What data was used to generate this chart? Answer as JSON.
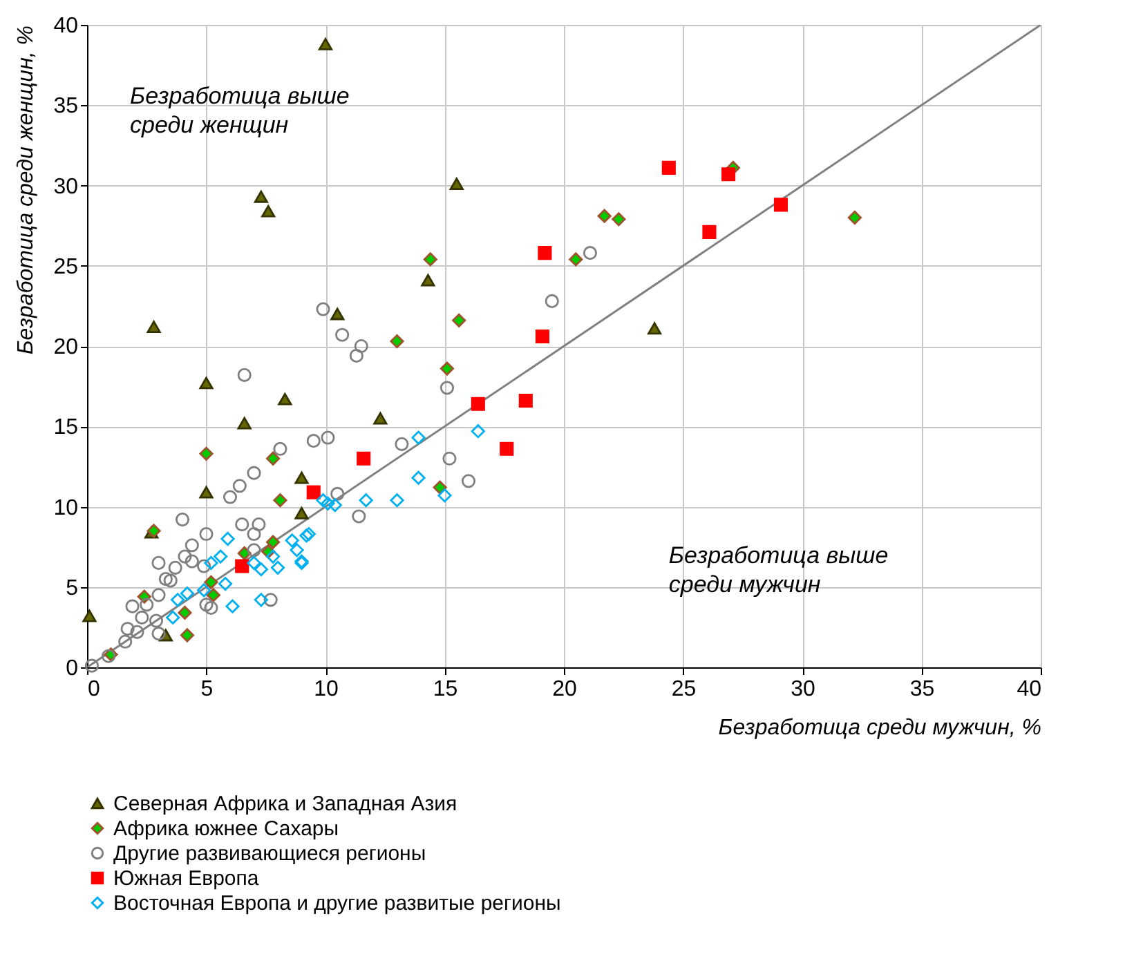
{
  "chart_data": {
    "type": "scatter",
    "xlabel": "Безработица среди мужчин, %",
    "ylabel": "Безработица среди женщин, %",
    "xlim": [
      0,
      40
    ],
    "ylim": [
      0,
      40
    ],
    "xticks": [
      0,
      5,
      10,
      15,
      20,
      25,
      30,
      35,
      40
    ],
    "yticks": [
      0,
      5,
      10,
      15,
      20,
      25,
      30,
      35,
      40
    ],
    "grid": true,
    "legend": "bottom left",
    "annotations": [
      "Безработица выше среди женщин",
      "Безработица выше среди мужчин"
    ],
    "series": [
      {
        "name": "Северная Африка и Западная Азия",
        "color": "#666600",
        "marker": "triangle",
        "x": [
          0.1,
          2.8,
          2.7,
          5.0,
          5.0,
          6.6,
          7.3,
          7.6,
          8.3,
          9.0,
          9.0,
          10.0,
          10.5,
          12.3,
          14.3,
          15.5,
          23.8,
          3.3
        ],
        "values": [
          3.2,
          21.2,
          8.4,
          17.7,
          10.9,
          15.2,
          29.3,
          28.4,
          16.7,
          11.8,
          9.6,
          38.8,
          22.0,
          15.5,
          24.1,
          30.1,
          21.1,
          2.0
        ]
      },
      {
        "name": "Африка южнее Сахары",
        "color": "#00cc00",
        "marker": "diamond",
        "x": [
          21.7,
          22.3,
          20.5,
          27.1,
          32.2,
          15.6,
          14.4,
          13.0,
          15.1,
          5.0,
          7.8,
          8.1,
          14.8,
          2.8,
          7.8,
          6.6,
          7.6,
          5.2,
          2.4,
          4.1,
          4.2,
          5.3,
          1.0
        ],
        "values": [
          28.1,
          27.9,
          25.4,
          31.1,
          28.0,
          21.6,
          25.4,
          20.3,
          18.6,
          13.3,
          13.0,
          10.4,
          11.2,
          8.5,
          7.8,
          7.1,
          7.2,
          5.3,
          4.4,
          3.4,
          2.0,
          4.5,
          0.8
        ]
      },
      {
        "name": "Другие развивающиеся регионы",
        "color": "#7f7f7f",
        "marker": "circle",
        "x": [
          9.9,
          10.7,
          11.5,
          11.3,
          6.6,
          15.1,
          9.5,
          10.1,
          8.1,
          21.1,
          19.5,
          13.2,
          15.2,
          16.0,
          7.0,
          6.4,
          6.0,
          10.5,
          11.4,
          7.2,
          6.5,
          4.0,
          5.0,
          4.4,
          3.0,
          4.1,
          3.7,
          3.3,
          1.9,
          2.5,
          1.7,
          2.9,
          1.6,
          0.9,
          0.2,
          7.0,
          7.0,
          5.0,
          5.2,
          7.7,
          3.0,
          3.5,
          2.1,
          3.0,
          4.9,
          2.3,
          4.4
        ],
        "values": [
          22.3,
          20.7,
          20.0,
          19.4,
          18.2,
          17.4,
          14.1,
          14.3,
          13.6,
          25.8,
          22.8,
          13.9,
          13.0,
          11.6,
          12.1,
          11.3,
          10.6,
          10.8,
          9.4,
          8.9,
          8.9,
          9.2,
          8.3,
          7.6,
          6.5,
          6.9,
          6.2,
          5.5,
          3.8,
          3.9,
          2.4,
          2.9,
          1.6,
          0.7,
          0.1,
          8.3,
          7.3,
          3.9,
          3.7,
          4.2,
          4.5,
          5.4,
          2.2,
          2.1,
          6.3,
          3.1,
          6.6
        ]
      },
      {
        "name": "Южная Европа",
        "color": "#ff0000",
        "marker": "square",
        "x": [
          24.4,
          26.9,
          29.1,
          26.1,
          19.2,
          19.1,
          16.4,
          18.4,
          17.6,
          11.6,
          9.5,
          6.5
        ],
        "values": [
          31.1,
          30.7,
          28.8,
          27.1,
          25.8,
          20.6,
          16.4,
          16.6,
          13.6,
          13.0,
          10.9,
          6.3
        ]
      },
      {
        "name": "Восточная Европа и другие развитые регионы",
        "color": "#00b0f0",
        "marker": "diamond",
        "x": [
          13.9,
          16.4,
          13.9,
          11.7,
          13.0,
          15.0,
          10.1,
          9.3,
          9.0,
          9.9,
          10.4,
          9.2,
          8.6,
          8.8,
          9.0,
          7.8,
          7.3,
          8.0,
          5.9,
          5.6,
          5.2,
          5.8,
          4.9,
          4.2,
          3.8,
          3.6,
          6.1,
          7.3,
          7.0
        ],
        "values": [
          14.3,
          14.7,
          11.8,
          10.4,
          10.4,
          10.7,
          10.2,
          8.3,
          6.6,
          10.4,
          10.1,
          8.2,
          7.9,
          7.3,
          6.5,
          6.9,
          6.1,
          6.2,
          8.0,
          6.9,
          6.5,
          5.2,
          4.8,
          4.6,
          4.2,
          3.1,
          3.8,
          4.2,
          6.5
        ]
      },
      {
        "type": "line",
        "color": "#808080",
        "x": [
          0,
          40
        ],
        "values": [
          0,
          40
        ]
      }
    ]
  }
}
